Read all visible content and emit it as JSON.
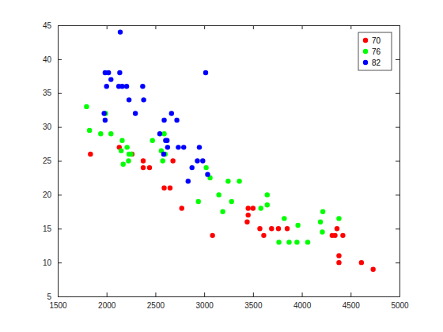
{
  "chart_data": {
    "type": "scatter",
    "marker": "circle",
    "legend": "northeast",
    "xlim": [
      1500,
      5000
    ],
    "xticks": [
      1500,
      2000,
      2500,
      3000,
      3500,
      4000,
      4500,
      5000
    ],
    "ylim": [
      5,
      45
    ],
    "yticks": [
      5,
      10,
      15,
      20,
      25,
      30,
      35,
      40,
      45
    ],
    "series": [
      {
        "name": "70",
        "color": "#ff0000",
        "x": [
          1835,
          2130,
          2260,
          2375,
          2375,
          2440,
          2590,
          2650,
          2680,
          2770,
          3085,
          3440,
          3450,
          3450,
          3500,
          3570,
          3610,
          3690,
          3760,
          3850,
          4310,
          4340,
          4360,
          4380,
          4380,
          4420,
          4610,
          4730
        ],
        "values": [
          26,
          27,
          26,
          25,
          24,
          24,
          21,
          21,
          25,
          18,
          14,
          16,
          17,
          18,
          18,
          15,
          14,
          15,
          15,
          15,
          14,
          14,
          15,
          10,
          11,
          14,
          10,
          9
        ]
      },
      {
        "name": "76",
        "color": "#00ff00",
        "x": [
          1795,
          1825,
          1940,
          1990,
          2045,
          2150,
          2160,
          2170,
          2210,
          2225,
          2230,
          2250,
          2470,
          2560,
          2575,
          2590,
          2600,
          2940,
          3020,
          3060,
          3150,
          3190,
          3245,
          3280,
          3360,
          3580,
          3645,
          3645,
          3765,
          3820,
          3870,
          3950,
          3960,
          4060,
          4190,
          4210,
          4215,
          4380
        ],
        "values": [
          33,
          29.5,
          29,
          32,
          29,
          26.5,
          28,
          24.5,
          27,
          25,
          26,
          26,
          28,
          26.5,
          25,
          29,
          26,
          19,
          24,
          22.5,
          20,
          17.5,
          22,
          19,
          22,
          18,
          18.5,
          20,
          13,
          16.5,
          13,
          13,
          15.5,
          13,
          16,
          14.5,
          17.5,
          16.5
        ]
      },
      {
        "name": "82",
        "color": "#0000ff",
        "x": [
          1975,
          1985,
          1985,
          2000,
          2020,
          2045,
          2125,
          2135,
          2140,
          2160,
          2205,
          2230,
          2295,
          2370,
          2380,
          2545,
          2585,
          2590,
          2605,
          2620,
          2625,
          2665,
          2720,
          2735,
          2790,
          2835,
          2875,
          2930,
          2950,
          2985,
          3015,
          3035
        ],
        "values": [
          32,
          31,
          38,
          36,
          38,
          37,
          36,
          38,
          44,
          36,
          36,
          34,
          32,
          36,
          34,
          29,
          26,
          31,
          28,
          28,
          27,
          32,
          31,
          27,
          27,
          22,
          24,
          25,
          27,
          25,
          38,
          23
        ]
      }
    ]
  }
}
